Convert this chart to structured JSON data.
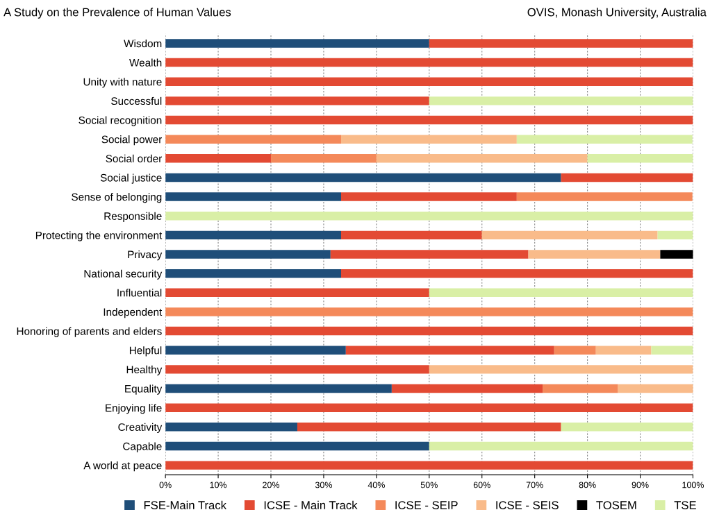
{
  "chart_data": {
    "type": "bar",
    "orientation": "horizontal",
    "stacked": true,
    "title": "A Study on the Prevalence of Human Values",
    "annotations": [
      "OVIS, Monash University, Australia"
    ],
    "categories": [
      "Wisdom",
      "Wealth",
      "Unity with nature",
      "Successful",
      "Social recognition",
      "Social power",
      "Social order",
      "Social justice",
      "Sense of belonging",
      "Responsible",
      "Protecting the environment",
      "Privacy",
      "National security",
      "Influential",
      "Independent",
      "Honoring of parents and elders",
      "Helpful",
      "Healthy",
      "Equality",
      "Enjoying life",
      "Creativity",
      "Capable",
      "A world at peace"
    ],
    "series": [
      {
        "name": "FSE-Main Track",
        "color": "#1f4e79",
        "values": [
          50,
          null,
          null,
          null,
          null,
          null,
          null,
          75,
          33.3,
          null,
          33.3,
          31.3,
          33.3,
          null,
          null,
          null,
          34.2,
          null,
          42.9,
          null,
          25,
          50,
          null
        ]
      },
      {
        "name": "ICSE - Main Track",
        "color": "#e34a33",
        "values": [
          50,
          100,
          100,
          50,
          100,
          null,
          20,
          25,
          33.3,
          null,
          26.7,
          37.5,
          66.7,
          50,
          null,
          100,
          39.5,
          50,
          28.6,
          100,
          50,
          null,
          100
        ]
      },
      {
        "name": "ICSE - SEIP",
        "color": "#f4895a",
        "values": [
          null,
          null,
          null,
          null,
          null,
          33.3,
          20,
          null,
          33.3,
          null,
          null,
          null,
          null,
          null,
          100,
          null,
          7.9,
          null,
          14.3,
          null,
          null,
          null,
          null
        ]
      },
      {
        "name": "ICSE - SEIS",
        "color": "#f9bb8a",
        "values": [
          null,
          null,
          null,
          null,
          null,
          33.3,
          40,
          null,
          null,
          null,
          33.3,
          25,
          null,
          null,
          null,
          null,
          10.5,
          50,
          14.3,
          null,
          null,
          null,
          null
        ]
      },
      {
        "name": "TOSEM",
        "color": "#000000",
        "values": [
          null,
          null,
          null,
          null,
          null,
          null,
          null,
          null,
          null,
          null,
          null,
          6.3,
          null,
          null,
          null,
          null,
          null,
          null,
          null,
          null,
          null,
          null,
          null
        ]
      },
      {
        "name": "TSE",
        "color": "#d9efa6",
        "values": [
          null,
          null,
          null,
          50,
          null,
          33.3,
          20,
          null,
          null,
          100,
          6.7,
          null,
          null,
          50,
          null,
          null,
          7.9,
          null,
          null,
          null,
          25,
          50,
          null
        ]
      }
    ],
    "xlim": [
      0,
      100
    ],
    "xticks": [
      {
        "value": 0,
        "label": "0%"
      },
      {
        "value": 10,
        "label": "10%"
      },
      {
        "value": 20,
        "label": "20%"
      },
      {
        "value": 30,
        "label": "30%"
      },
      {
        "value": 40,
        "label": "40%"
      },
      {
        "value": 50,
        "label": "50%"
      },
      {
        "value": 60,
        "label": "60%"
      },
      {
        "value": 70,
        "label": "70%"
      },
      {
        "value": 80,
        "label": "80%"
      },
      {
        "value": 90,
        "label": "90%"
      },
      {
        "value": 100,
        "label": "100%"
      }
    ],
    "grid": "x",
    "legend": "bottom"
  }
}
